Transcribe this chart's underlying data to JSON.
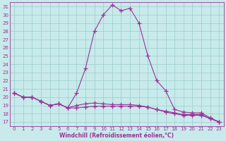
{
  "xlabel": "Windchill (Refroidissement éolien,°C)",
  "hours": [
    0,
    1,
    2,
    3,
    4,
    5,
    6,
    7,
    8,
    9,
    10,
    11,
    12,
    13,
    14,
    15,
    16,
    17,
    18,
    19,
    20,
    21,
    22,
    23
  ],
  "temp": [
    20.5,
    20.0,
    20.0,
    19.5,
    19.0,
    19.2,
    18.7,
    20.5,
    23.5,
    28.0,
    30.0,
    31.2,
    30.5,
    30.8,
    29.0,
    25.0,
    22.0,
    20.8,
    18.5,
    18.2,
    18.1,
    18.1,
    17.5,
    17.0
  ],
  "windchill": [
    20.5,
    20.0,
    20.0,
    19.5,
    19.0,
    19.2,
    18.7,
    18.7,
    18.8,
    18.9,
    18.9,
    18.9,
    18.9,
    18.9,
    18.9,
    18.8,
    18.5,
    18.2,
    18.0,
    17.8,
    17.8,
    17.8,
    17.4,
    17.0
  ],
  "apparent": [
    20.5,
    20.0,
    20.0,
    19.5,
    19.0,
    19.2,
    18.7,
    19.0,
    19.2,
    19.3,
    19.2,
    19.1,
    19.1,
    19.1,
    19.0,
    18.8,
    18.5,
    18.3,
    18.1,
    17.9,
    17.9,
    17.9,
    17.4,
    17.0
  ],
  "line_color": "#993399",
  "bg_color": "#c8eaea",
  "grid_color": "#99cccc",
  "ylim_min": 17,
  "ylim_max": 31,
  "xlim_min": 0,
  "xlim_max": 23,
  "yticks": [
    17,
    18,
    19,
    20,
    21,
    22,
    23,
    24,
    25,
    26,
    27,
    28,
    29,
    30,
    31
  ],
  "xticks": [
    0,
    1,
    2,
    3,
    4,
    5,
    6,
    7,
    8,
    9,
    10,
    11,
    12,
    13,
    14,
    15,
    16,
    17,
    18,
    19,
    20,
    21,
    22,
    23
  ],
  "tick_fontsize": 5.0,
  "xlabel_fontsize": 5.5
}
